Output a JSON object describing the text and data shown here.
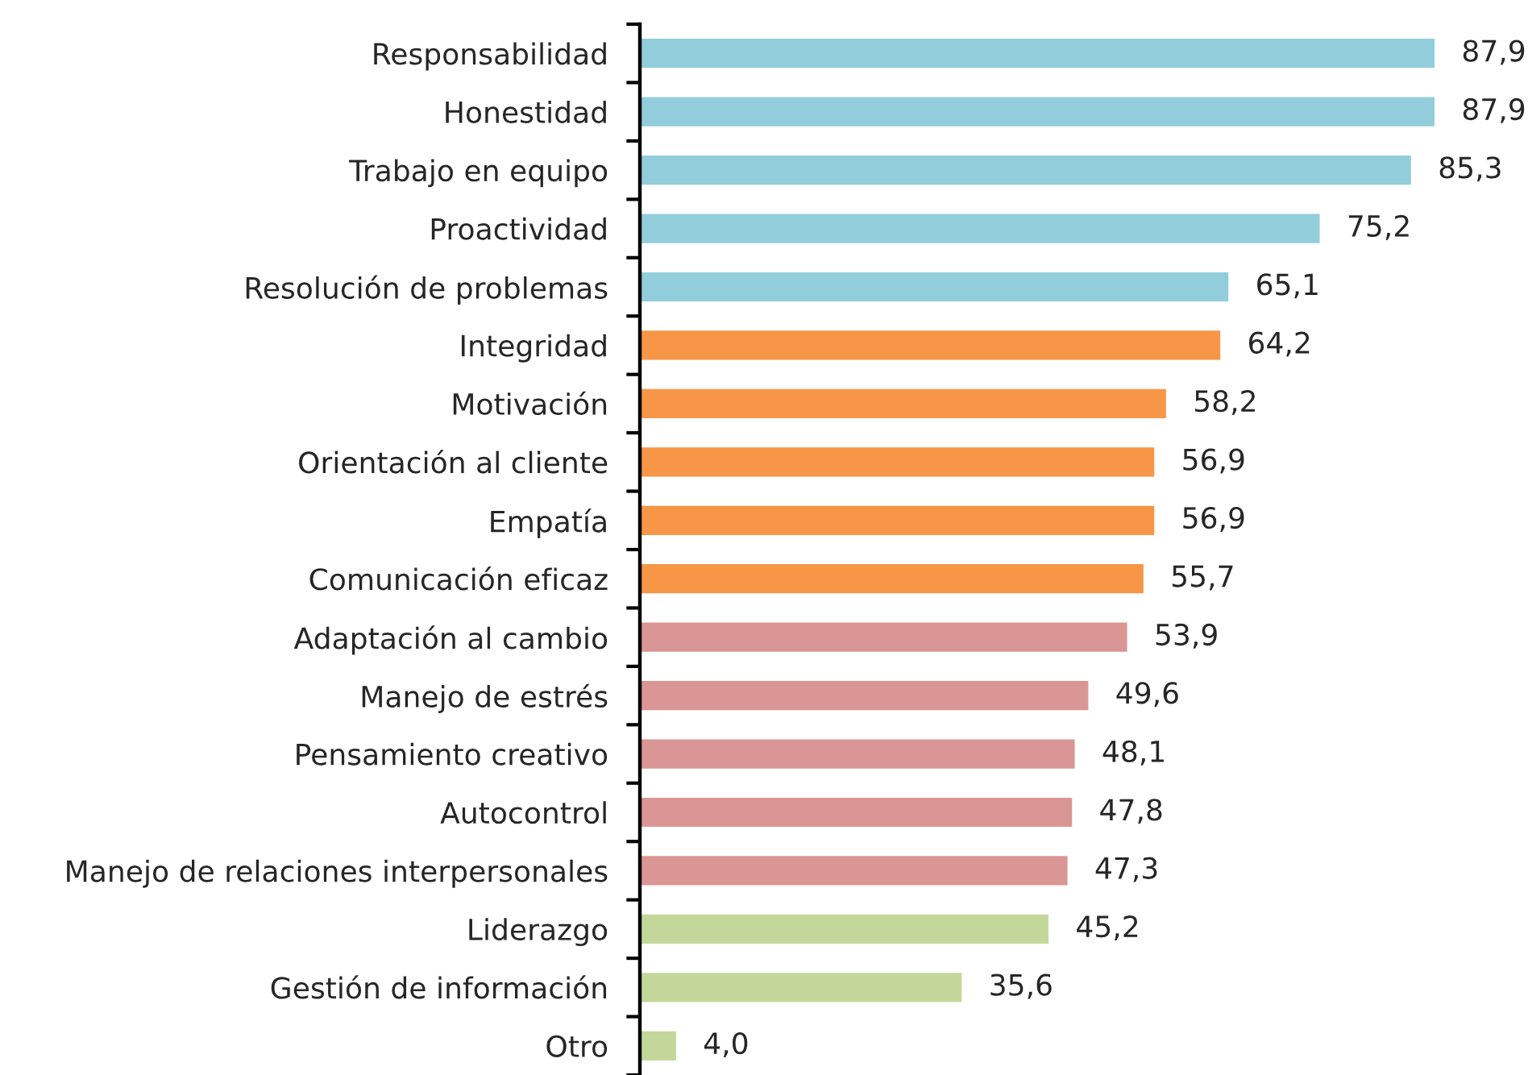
{
  "chart_data": {
    "type": "bar",
    "orientation": "horizontal",
    "categories": [
      "Responsabilidad",
      "Honestidad",
      "Trabajo en equipo",
      "Proactividad",
      "Resolución de problemas",
      "Integridad",
      "Motivación",
      "Orientación al cliente",
      "Empatía",
      "Comunicación eficaz",
      "Adaptación al cambio",
      "Manejo de estrés",
      "Pensamiento creativo",
      "Autocontrol",
      "Manejo de relaciones interpersonales",
      "Liderazgo",
      "Gestión de información",
      "Otro"
    ],
    "values": [
      87.9,
      87.9,
      85.3,
      75.2,
      65.1,
      64.2,
      58.2,
      56.9,
      56.9,
      55.7,
      53.9,
      49.6,
      48.1,
      47.8,
      47.3,
      45.2,
      35.6,
      4.0
    ],
    "value_labels": [
      "87,9",
      "87,9",
      "85,3",
      "75,2",
      "65,1",
      "64,2",
      "58,2",
      "56,9",
      "56,9",
      "55,7",
      "53,9",
      "49,6",
      "48,1",
      "47,8",
      "47,3",
      "45,2",
      "35,6",
      "4,0"
    ],
    "colors": [
      "#92cddc",
      "#92cddc",
      "#92cddc",
      "#92cddc",
      "#92cddc",
      "#f79646",
      "#f79646",
      "#f79646",
      "#f79646",
      "#f79646",
      "#da9694",
      "#da9694",
      "#da9694",
      "#da9694",
      "#da9694",
      "#c4d79b",
      "#c4d79b",
      "#c4d79b"
    ],
    "tick_labels": "y"
  }
}
